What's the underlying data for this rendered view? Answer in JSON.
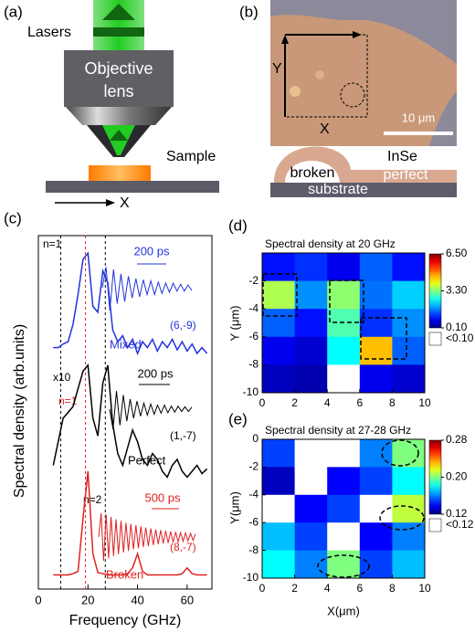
{
  "panels": {
    "a": {
      "label": "(a)",
      "lasers": "Lasers",
      "objective_line1": "Objective",
      "objective_line2": "lens",
      "sample": "Sample",
      "x_label": "X"
    },
    "b": {
      "label": "(b)",
      "y_label": "Y",
      "x_label": "X",
      "scale_bar": "10 μm",
      "layer": "InSe",
      "broken": "broken",
      "perfect": "perfect",
      "substrate": "substrate"
    }
  },
  "chart_data": [
    {
      "type": "line",
      "label": "(c)",
      "xlabel": "Frequency (GHz)",
      "ylabel": "Spectral density (arb.units)",
      "xlim": [
        0,
        70
      ],
      "xticks": [
        0,
        20,
        40,
        60
      ],
      "ylim": [
        0,
        3
      ],
      "x": [
        6,
        8,
        10,
        12,
        14,
        16,
        18,
        20,
        22,
        24,
        26,
        28,
        30,
        32,
        34,
        36,
        38,
        40,
        42,
        44,
        46,
        48,
        50,
        52,
        54,
        56,
        58,
        60,
        62,
        64,
        66,
        68
      ],
      "reference_lines": [
        {
          "x": 9,
          "color": "#000000"
        },
        {
          "x": 19,
          "color": "#e02020"
        },
        {
          "x": 27,
          "color": "#000000"
        }
      ],
      "annotations": [
        "n=1",
        "n=1",
        "n=2",
        "x10",
        "200 ps",
        "(6,-9)",
        "200 ps",
        "(1,-7)",
        "500 ps",
        "(8,-7)"
      ],
      "series": [
        {
          "name": "Mixed",
          "color": "#2233dd",
          "values": [
            2.05,
            2.05,
            2.08,
            2.1,
            2.25,
            2.5,
            2.8,
            2.85,
            2.4,
            2.35,
            2.7,
            2.6,
            2.2,
            2.1,
            2.15,
            2.05,
            2.12,
            2.0,
            2.1,
            2.05,
            2.12,
            2.02,
            2.1,
            2.05,
            2.12,
            2.03,
            2.1,
            2.02,
            2.08,
            2.0,
            2.05,
            2.0
          ],
          "inset": [
            0,
            0.9,
            -1,
            0.8,
            -0.7,
            0.6,
            -0.6,
            0.5,
            -0.45,
            0.4,
            -0.4,
            0.35,
            -0.3,
            0.3,
            -0.3,
            0.25,
            -0.25,
            0.2,
            -0.2,
            0.2,
            -0.15,
            0.15,
            -0.15,
            0.12,
            -0.12
          ]
        },
        {
          "name": "Perfect",
          "color": "#000000",
          "values": [
            1.05,
            1.25,
            1.45,
            1.5,
            1.55,
            1.7,
            1.85,
            1.9,
            1.45,
            1.3,
            1.75,
            1.9,
            1.4,
            1.15,
            1.05,
            1.2,
            1.35,
            1.25,
            1.1,
            1.05,
            1.15,
            1.1,
            1.0,
            0.95,
            1.05,
            1.1,
            1.0,
            0.95,
            1.0,
            1.05,
            0.98,
            1.02
          ],
          "inset": [
            0,
            -1,
            0.9,
            -0.8,
            0.7,
            -0.6,
            0.5,
            -0.45,
            0.4,
            -0.35,
            0.3,
            -0.3,
            0.25,
            -0.25,
            0.2,
            -0.2,
            0.2,
            -0.18,
            0.15,
            -0.15,
            0.15,
            -0.12,
            0.12,
            -0.12,
            0.1
          ]
        },
        {
          "name": "Broken",
          "color": "#e02020",
          "values": [
            0.12,
            0.12,
            0.12,
            0.12,
            0.13,
            0.15,
            0.6,
            1.0,
            0.3,
            0.14,
            0.13,
            0.12,
            0.12,
            0.12,
            0.12,
            0.13,
            0.18,
            0.3,
            0.15,
            0.12,
            0.12,
            0.12,
            0.12,
            0.12,
            0.12,
            0.12,
            0.13,
            0.18,
            0.13,
            0.12,
            0.12,
            0.12
          ],
          "inset": [
            0,
            1,
            -1,
            0.95,
            -0.9,
            0.85,
            -0.8,
            0.75,
            -0.72,
            0.68,
            -0.65,
            0.6,
            -0.58,
            0.55,
            -0.52,
            0.5,
            -0.47,
            0.45,
            -0.42,
            0.4,
            -0.38,
            0.36,
            -0.34,
            0.32,
            -0.3,
            0.29,
            -0.27,
            0.26,
            -0.25,
            0.24,
            -0.22,
            0.21,
            -0.2,
            0.19,
            -0.18,
            0.17,
            -0.16,
            0.15,
            -0.14,
            0.13
          ]
        }
      ]
    },
    {
      "type": "heatmap",
      "label": "(d)",
      "title": "Spectral density at 20 GHz",
      "ylabel": "Y (μm)",
      "xlim": [
        0,
        10
      ],
      "ylim": [
        -10,
        0
      ],
      "xticks": [
        0,
        2,
        4,
        6,
        8,
        10
      ],
      "yticks": [
        -2,
        -4,
        -6,
        -8,
        -10
      ],
      "values": [
        [
          1.0,
          1.2,
          0.8,
          1.5,
          1.0
        ],
        [
          3.6,
          1.8,
          3.4,
          1.6,
          2.2
        ],
        [
          1.5,
          1.0,
          3.0,
          1.2,
          1.8
        ],
        [
          0.8,
          0.6,
          2.5,
          4.5,
          1.5
        ],
        [
          0.5,
          0.4,
          0.05,
          0.8,
          0.6
        ]
      ],
      "colorbar": {
        "clim": [
          0.1,
          6.5
        ],
        "ticks": [
          {
            "value": 6.5,
            "label": "6.50"
          },
          {
            "value": 3.3,
            "label": "3.30"
          },
          {
            "value": 0.1,
            "label": "0.10"
          }
        ],
        "below_label": "<0.10"
      }
    },
    {
      "type": "heatmap",
      "label": "(e)",
      "title": "Spectral density at 27-28 GHz",
      "xlabel": "X(μm)",
      "ylabel": "Y(μm)",
      "xlim": [
        0,
        10
      ],
      "ylim": [
        -10,
        0
      ],
      "xticks": [
        0,
        2,
        4,
        6,
        8,
        10
      ],
      "yticks": [
        0,
        -2,
        -4,
        -6,
        -8,
        -10
      ],
      "values": [
        [
          0.15,
          0.05,
          0.05,
          0.16,
          0.2
        ],
        [
          0.13,
          0.05,
          0.14,
          0.15,
          0.18
        ],
        [
          0.05,
          0.14,
          0.15,
          0.05,
          0.21
        ],
        [
          0.17,
          0.15,
          0.05,
          0.14,
          0.16
        ],
        [
          0.18,
          0.16,
          0.2,
          0.15,
          0.17
        ]
      ],
      "colorbar": {
        "clim": [
          0.12,
          0.28
        ],
        "ticks": [
          {
            "value": 0.28,
            "label": "0.28"
          },
          {
            "value": 0.2,
            "label": "0.20"
          },
          {
            "value": 0.12,
            "label": "0.12"
          }
        ],
        "below_label": "<0.12"
      }
    }
  ]
}
